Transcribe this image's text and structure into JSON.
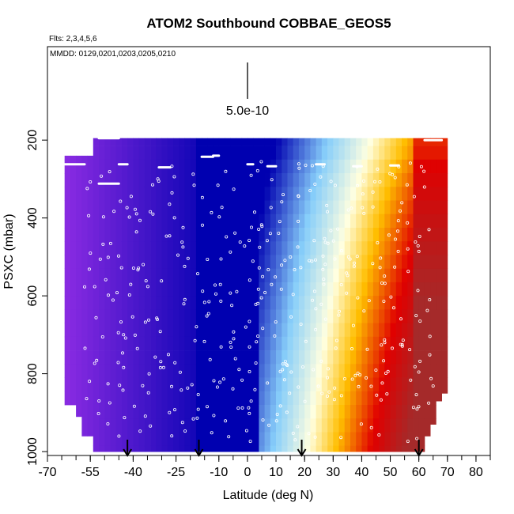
{
  "chart_data": {
    "type": "heatmap",
    "title": "ATOM2 Southbound COBBAE_GEOS5",
    "flights_note": "Flts: 2,3,4,5,6",
    "dates_note": "MMDD: 0129,0201,0203,0205,0210",
    "scale_label": "5.0e-10",
    "xlabel": "Latitude (deg N)",
    "ylabel": "PSXC (mbar)",
    "xlim": [
      -70,
      85
    ],
    "ylim": [
      1010,
      -40
    ],
    "y_reversed": true,
    "x_ticks": [
      -70,
      -55,
      -40,
      -25,
      -10,
      0,
      10,
      20,
      30,
      40,
      50,
      60,
      70,
      80
    ],
    "x_tick_labels": [
      "-70",
      "-55",
      "-40",
      "-25",
      "-10",
      "0",
      "10",
      "20",
      "30",
      "40",
      "50",
      "60",
      "70",
      "80"
    ],
    "y_ticks": [
      200,
      400,
      600,
      800,
      1000
    ],
    "y_tick_labels": [
      "200",
      "400",
      "600",
      "800",
      "1000"
    ],
    "arrow_latitudes": [
      -42,
      -17,
      19,
      60
    ],
    "colors": {
      "low": "#8a2be2",
      "mid_low": "#0000b0",
      "mid": "#87cefa",
      "mid_high": "#ffffe0",
      "high": "#e00000",
      "max": "#a52a2a",
      "sample_marker": "#ffffff"
    }
  }
}
